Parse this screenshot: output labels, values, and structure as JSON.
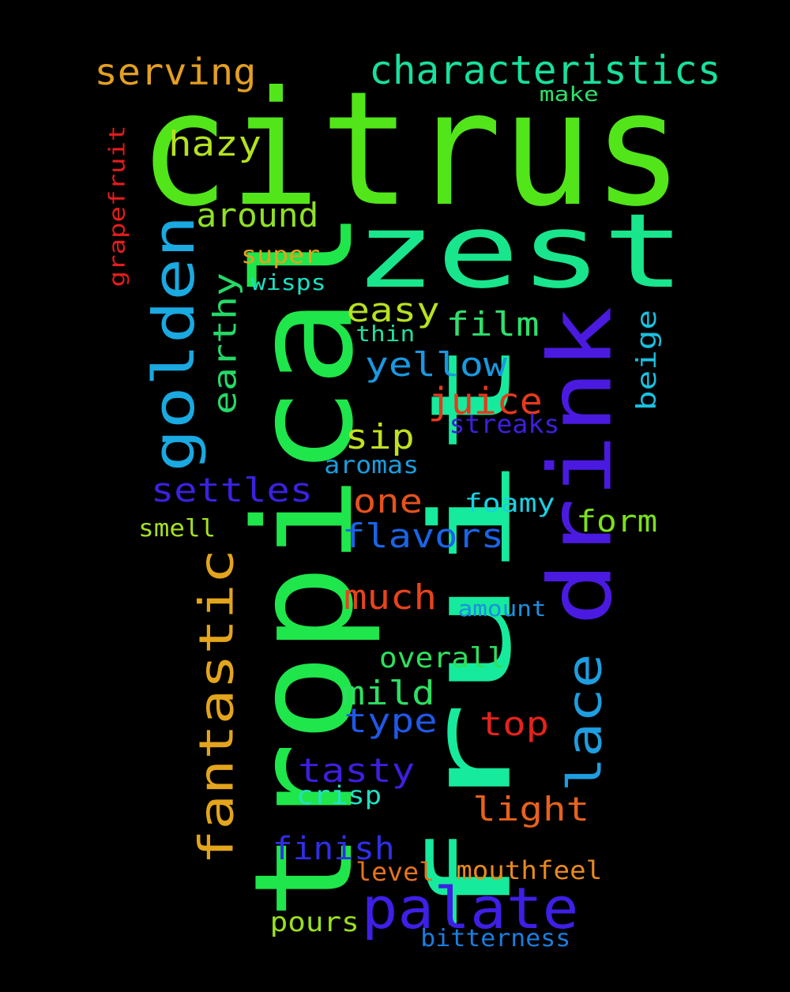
{
  "background": "#000000",
  "words": [
    {
      "text": "citrus",
      "color": "#52e51a"
    },
    {
      "text": "tropical",
      "color": "#1fe64b"
    },
    {
      "text": "fruit",
      "color": "#16ea9c"
    },
    {
      "text": "zest",
      "color": "#19e58c"
    },
    {
      "text": "drink",
      "color": "#4a1ae0"
    },
    {
      "text": "palate",
      "color": "#3d1fe6"
    },
    {
      "text": "golden",
      "color": "#1aa9e0"
    },
    {
      "text": "fantastic",
      "color": "#e3a51c"
    },
    {
      "text": "lace",
      "color": "#1e9ee0"
    },
    {
      "text": "characteristics",
      "color": "#18e09e"
    },
    {
      "text": "serving",
      "color": "#e39f22"
    },
    {
      "text": "hazy",
      "color": "#b4e21f"
    },
    {
      "text": "earthy",
      "color": "#25d968"
    },
    {
      "text": "around",
      "color": "#8fe028"
    },
    {
      "text": "easy",
      "color": "#b7e220"
    },
    {
      "text": "film",
      "color": "#2de06d"
    },
    {
      "text": "yellow",
      "color": "#1a98e0"
    },
    {
      "text": "juice",
      "color": "#e6391c"
    },
    {
      "text": "sip",
      "color": "#c2e020"
    },
    {
      "text": "settles",
      "color": "#3a22e0"
    },
    {
      "text": "one",
      "color": "#e6521c"
    },
    {
      "text": "flavors",
      "color": "#1a64e6"
    },
    {
      "text": "much",
      "color": "#e6431c"
    },
    {
      "text": "mild",
      "color": "#2de061"
    },
    {
      "text": "type",
      "color": "#2058e6"
    },
    {
      "text": "top",
      "color": "#e6221c"
    },
    {
      "text": "tasty",
      "color": "#3d1fe0"
    },
    {
      "text": "light",
      "color": "#e6621c"
    },
    {
      "text": "finish",
      "color": "#2f2ee6"
    },
    {
      "text": "crisp",
      "color": "#22e0c2"
    },
    {
      "text": "overall",
      "color": "#2ee05c"
    },
    {
      "text": "pours",
      "color": "#9ae020"
    },
    {
      "text": "mouthfeel",
      "color": "#e88a1c"
    },
    {
      "text": "level",
      "color": "#e6721c"
    },
    {
      "text": "bitterness",
      "color": "#1a7ee0"
    },
    {
      "text": "make",
      "color": "#2ee06b"
    },
    {
      "text": "grapefruit",
      "color": "#e61c1c"
    },
    {
      "text": "super",
      "color": "#e6a21c"
    },
    {
      "text": "wisps",
      "color": "#1ae0c4"
    },
    {
      "text": "thin",
      "color": "#22e0a0"
    },
    {
      "text": "beige",
      "color": "#1ac0e0"
    },
    {
      "text": "streaks",
      "color": "#3d1fe0"
    },
    {
      "text": "aromas",
      "color": "#1a9ee0"
    },
    {
      "text": "foamy",
      "color": "#1ad0e0"
    },
    {
      "text": "form",
      "color": "#7ae020"
    },
    {
      "text": "smell",
      "color": "#a6e020"
    },
    {
      "text": "amount",
      "color": "#1a90e0"
    }
  ]
}
